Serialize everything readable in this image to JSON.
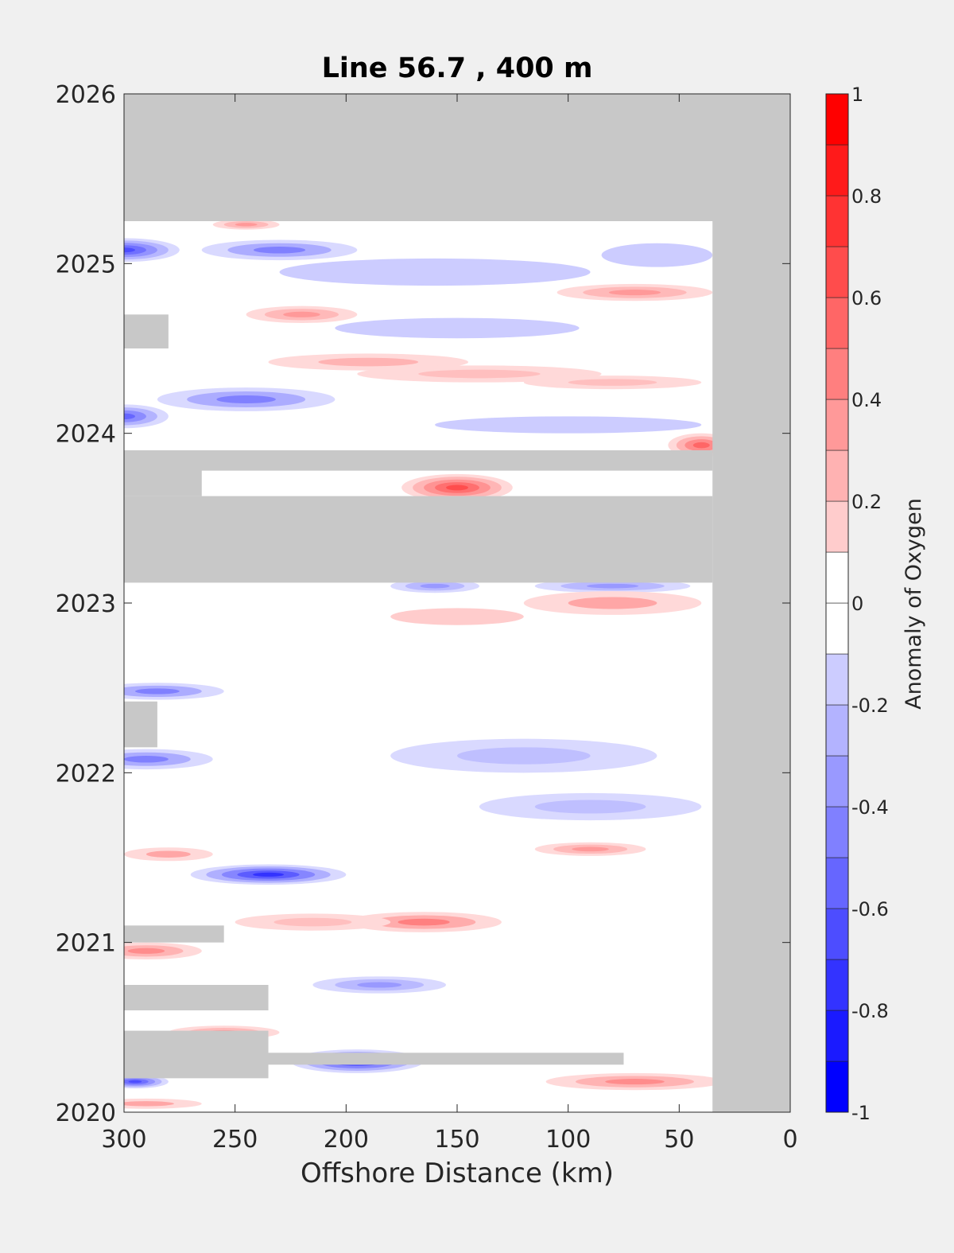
{
  "chart_data": {
    "type": "heatmap",
    "title": "Line 56.7 , 400 m",
    "xlabel": "Offshore Distance (km)",
    "ylabel": "",
    "xlim": [
      300,
      0
    ],
    "ylim": [
      2020,
      2026
    ],
    "x_ticks": [
      "300",
      "250",
      "200",
      "150",
      "100",
      "50",
      "0"
    ],
    "y_ticks": [
      "2020",
      "2021",
      "2022",
      "2023",
      "2024",
      "2025",
      "2026"
    ],
    "x_tick_values": [
      300,
      250,
      200,
      150,
      100,
      50,
      0
    ],
    "y_tick_values": [
      2020,
      2021,
      2022,
      2023,
      2024,
      2025,
      2026
    ],
    "data_extent": {
      "x": [
        300,
        35
      ],
      "y": [
        2020.05,
        2025.25
      ]
    },
    "nodata_color": "#c8c8c8",
    "colorbar": {
      "label": "Anomaly of Oxygen",
      "min": -1,
      "max": 1,
      "step": 0.1,
      "tick_labels": [
        "-1",
        "-0.8",
        "-0.6",
        "-0.4",
        "-0.2",
        "0",
        "0.2",
        "0.4",
        "0.6",
        "0.8",
        "1"
      ],
      "tick_values": [
        -1,
        -0.8,
        -0.6,
        -0.4,
        -0.2,
        0,
        0.2,
        0.4,
        0.6,
        0.8,
        1
      ],
      "negative_color": "#0000ff",
      "positive_color": "#ff0000"
    },
    "nodata_regions": [
      {
        "x": [
          300,
          0
        ],
        "y": [
          2025.25,
          2026
        ]
      },
      {
        "x": [
          35,
          0
        ],
        "y": [
          2020,
          2025.25
        ]
      },
      {
        "x": [
          300,
          35
        ],
        "y": [
          2023.12,
          2023.63
        ]
      },
      {
        "x": [
          300,
          265
        ],
        "y": [
          2023.63,
          2023.9
        ]
      },
      {
        "x": [
          300,
          35
        ],
        "y": [
          2023.78,
          2023.9
        ]
      },
      {
        "x": [
          300,
          75
        ],
        "y": [
          2020.28,
          2020.35
        ]
      },
      {
        "x": [
          300,
          235
        ],
        "y": [
          2020.2,
          2020.48
        ]
      },
      {
        "x": [
          300,
          235
        ],
        "y": [
          2020.6,
          2020.75
        ]
      },
      {
        "x": [
          300,
          255
        ],
        "y": [
          2021.0,
          2021.1
        ]
      },
      {
        "x": [
          300,
          285
        ],
        "y": [
          2022.15,
          2022.42
        ]
      },
      {
        "x": [
          300,
          280
        ],
        "y": [
          2024.5,
          2024.7
        ]
      }
    ],
    "anomaly_features": [
      {
        "x": 300,
        "y": 2025.08,
        "rx": 25,
        "ry": 0.07,
        "value": -0.7
      },
      {
        "x": 230,
        "y": 2025.08,
        "rx": 35,
        "ry": 0.06,
        "value": -0.5
      },
      {
        "x": 245,
        "y": 2025.23,
        "rx": 15,
        "ry": 0.03,
        "value": 0.4
      },
      {
        "x": 160,
        "y": 2024.95,
        "rx": 70,
        "ry": 0.08,
        "value": -0.2
      },
      {
        "x": 60,
        "y": 2025.05,
        "rx": 25,
        "ry": 0.07,
        "value": -0.2
      },
      {
        "x": 70,
        "y": 2024.83,
        "rx": 35,
        "ry": 0.05,
        "value": 0.4
      },
      {
        "x": 220,
        "y": 2024.7,
        "rx": 25,
        "ry": 0.05,
        "value": 0.4
      },
      {
        "x": 150,
        "y": 2024.62,
        "rx": 55,
        "ry": 0.06,
        "value": -0.2
      },
      {
        "x": 190,
        "y": 2024.42,
        "rx": 45,
        "ry": 0.05,
        "value": 0.3
      },
      {
        "x": 140,
        "y": 2024.35,
        "rx": 55,
        "ry": 0.05,
        "value": 0.25
      },
      {
        "x": 80,
        "y": 2024.3,
        "rx": 40,
        "ry": 0.04,
        "value": 0.25
      },
      {
        "x": 245,
        "y": 2024.2,
        "rx": 40,
        "ry": 0.07,
        "value": -0.5
      },
      {
        "x": 300,
        "y": 2024.1,
        "rx": 20,
        "ry": 0.07,
        "value": -0.6
      },
      {
        "x": 40,
        "y": 2023.93,
        "rx": 15,
        "ry": 0.07,
        "value": 0.6
      },
      {
        "x": 150,
        "y": 2023.68,
        "rx": 25,
        "ry": 0.08,
        "value": 0.7
      },
      {
        "x": 100,
        "y": 2024.05,
        "rx": 60,
        "ry": 0.05,
        "value": -0.2
      },
      {
        "x": 80,
        "y": 2023.1,
        "rx": 35,
        "ry": 0.04,
        "value": -0.4
      },
      {
        "x": 160,
        "y": 2023.1,
        "rx": 20,
        "ry": 0.04,
        "value": -0.4
      },
      {
        "x": 80,
        "y": 2023.0,
        "rx": 40,
        "ry": 0.07,
        "value": 0.35
      },
      {
        "x": 150,
        "y": 2022.92,
        "rx": 30,
        "ry": 0.05,
        "value": 0.2
      },
      {
        "x": 285,
        "y": 2022.48,
        "rx": 30,
        "ry": 0.05,
        "value": -0.5
      },
      {
        "x": 290,
        "y": 2022.08,
        "rx": 30,
        "ry": 0.06,
        "value": -0.5
      },
      {
        "x": 120,
        "y": 2022.1,
        "rx": 60,
        "ry": 0.1,
        "value": -0.25
      },
      {
        "x": 90,
        "y": 2021.8,
        "rx": 50,
        "ry": 0.08,
        "value": -0.25
      },
      {
        "x": 90,
        "y": 2021.55,
        "rx": 25,
        "ry": 0.04,
        "value": 0.4
      },
      {
        "x": 280,
        "y": 2021.52,
        "rx": 20,
        "ry": 0.04,
        "value": 0.35
      },
      {
        "x": 235,
        "y": 2021.4,
        "rx": 35,
        "ry": 0.06,
        "value": -0.8
      },
      {
        "x": 165,
        "y": 2021.12,
        "rx": 35,
        "ry": 0.06,
        "value": 0.5
      },
      {
        "x": 215,
        "y": 2021.12,
        "rx": 35,
        "ry": 0.05,
        "value": 0.25
      },
      {
        "x": 290,
        "y": 2020.95,
        "rx": 25,
        "ry": 0.05,
        "value": 0.45
      },
      {
        "x": 185,
        "y": 2020.75,
        "rx": 30,
        "ry": 0.05,
        "value": -0.4
      },
      {
        "x": 195,
        "y": 2020.3,
        "rx": 30,
        "ry": 0.07,
        "value": -0.8
      },
      {
        "x": 255,
        "y": 2020.47,
        "rx": 25,
        "ry": 0.04,
        "value": 0.4
      },
      {
        "x": 70,
        "y": 2020.18,
        "rx": 40,
        "ry": 0.05,
        "value": 0.45
      },
      {
        "x": 295,
        "y": 2020.18,
        "rx": 15,
        "ry": 0.04,
        "value": -0.7
      },
      {
        "x": 290,
        "y": 2020.05,
        "rx": 25,
        "ry": 0.03,
        "value": 0.35
      }
    ]
  }
}
